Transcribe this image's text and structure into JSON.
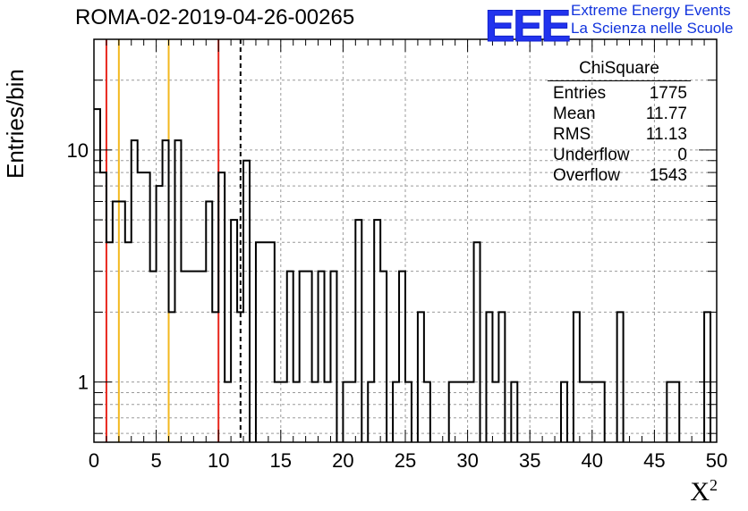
{
  "title": "ROMA-02-2019-04-26-00265",
  "logo": {
    "mark": "EEE",
    "line1": "Extreme Energy Events",
    "line2": "La Scienza nelle Scuole"
  },
  "stats_box": {
    "name": "ChiSquare",
    "rows": [
      {
        "label": "Entries",
        "value": "1775"
      },
      {
        "label": "Mean",
        "value": "11.77"
      },
      {
        "label": "RMS",
        "value": "11.13"
      },
      {
        "label": "Underflow",
        "value": "0"
      },
      {
        "label": "Overflow",
        "value": "1543"
      }
    ]
  },
  "chart_data": {
    "type": "bar",
    "title": "ROMA-02-2019-04-26-00265",
    "xlabel": "X",
    "xlabel_superscript": "2",
    "ylabel": "Entries/bin",
    "xlim": [
      0,
      50
    ],
    "ylim": [
      0.55,
      30
    ],
    "yscale": "log",
    "grid": true,
    "x_ticks": [
      "0",
      "5",
      "10",
      "15",
      "20",
      "25",
      "30",
      "35",
      "40",
      "45",
      "50"
    ],
    "y_ticks": [
      "1",
      "10"
    ],
    "bin_width": 0.5,
    "bin_edges_start": 0,
    "values": [
      15,
      8,
      4,
      6,
      6,
      4,
      11,
      8,
      8,
      3,
      7,
      11,
      2,
      11,
      3,
      3,
      3,
      3,
      6,
      2,
      8,
      1,
      5,
      2,
      9,
      0,
      4,
      4,
      4,
      1,
      1,
      3,
      1,
      3,
      3,
      1,
      3,
      1,
      3,
      0,
      1,
      1,
      5,
      0,
      1,
      5,
      3,
      0,
      1,
      3,
      1,
      0,
      2,
      1,
      0,
      0,
      0,
      1,
      1,
      1,
      1,
      4,
      0,
      2,
      1,
      2,
      0,
      1,
      0,
      0,
      0,
      0,
      0,
      0,
      0,
      1,
      0,
      2,
      1,
      1,
      1,
      1,
      0,
      0,
      2,
      0,
      0,
      0,
      0,
      0,
      0,
      0,
      1,
      1,
      0,
      0,
      0,
      0,
      2,
      0
    ],
    "vertical_lines": [
      {
        "x": 1,
        "color": "#e8261c",
        "style": "solid"
      },
      {
        "x": 2,
        "color": "#f3b81f",
        "style": "solid"
      },
      {
        "x": 6,
        "color": "#f3b81f",
        "style": "solid"
      },
      {
        "x": 10,
        "color": "#e8261c",
        "style": "solid"
      },
      {
        "x": 11.77,
        "color": "#000000",
        "style": "dashed"
      }
    ]
  }
}
